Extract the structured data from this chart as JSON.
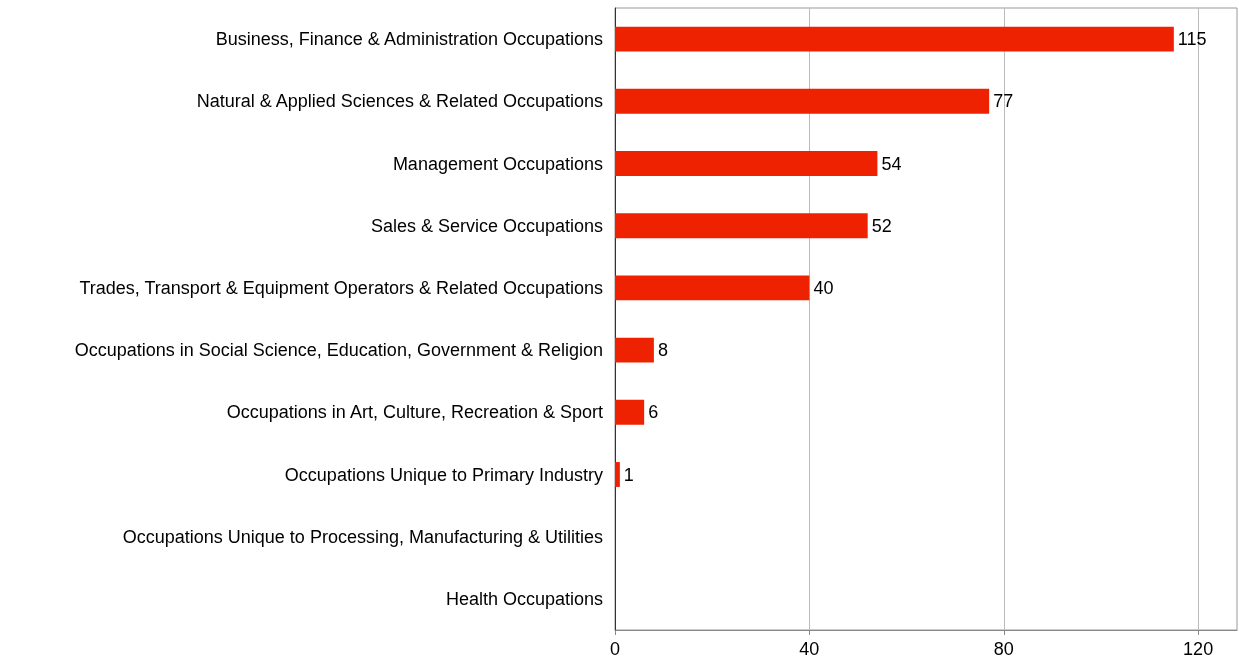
{
  "chart_data": {
    "type": "bar",
    "orientation": "horizontal",
    "categories": [
      "Business, Finance & Administration Occupations",
      "Natural & Applied Sciences & Related Occupations",
      "Management Occupations",
      "Sales & Service Occupations",
      "Trades, Transport & Equipment Operators & Related Occupations",
      "Occupations in Social Science, Education, Government & Religion",
      "Occupations in Art, Culture, Recreation & Sport",
      "Occupations Unique to Primary Industry",
      "Occupations Unique to Processing, Manufacturing & Utilities",
      "Health Occupations"
    ],
    "values": [
      115,
      77,
      54,
      52,
      40,
      8,
      6,
      1,
      0,
      0
    ],
    "value_labels": [
      "115",
      "77",
      "54",
      "52",
      "40",
      "8",
      "6",
      "1",
      null,
      null
    ],
    "color": "#ee2200",
    "xlim": [
      0,
      128
    ],
    "xticks": [
      0,
      40,
      80,
      120
    ],
    "grid": "x"
  }
}
